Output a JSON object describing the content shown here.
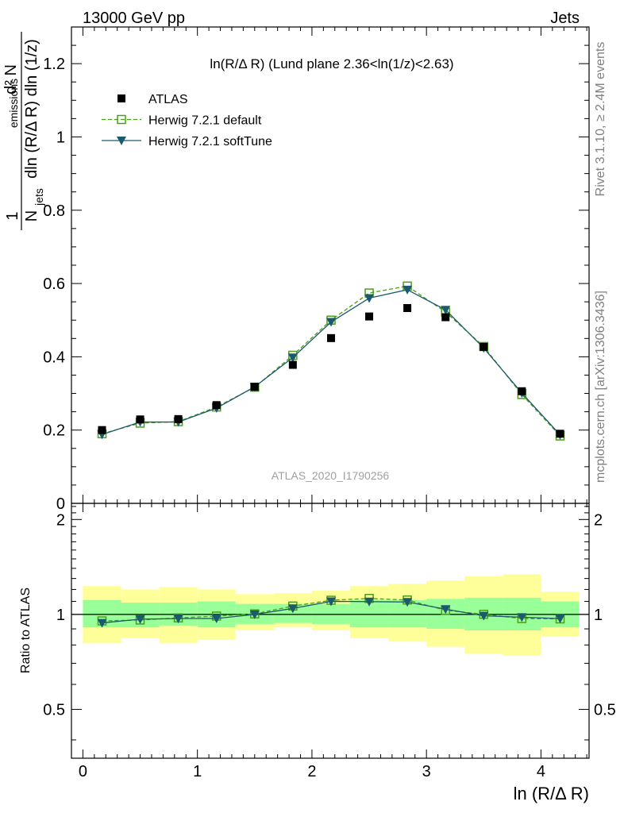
{
  "header": {
    "left": "13000 GeV pp",
    "right": "Jets"
  },
  "side": {
    "top": "Rivet 3.1.10, ≥ 2.4M events",
    "bottom": "mcplots.cern.ch [arXiv:1306.3436]"
  },
  "chart_data": [
    {
      "type": "scatter",
      "title": "ln(R/Δ R) (Lund plane 2.36<ln(1/z)<2.63)",
      "watermark": "ATLAS_2020_I1790256",
      "ylabel": "1/N_jets d²N_emissions / dln(R/Δ R) dln(1/z)",
      "xlim": [
        -0.1,
        4.42
      ],
      "ylim": [
        0,
        1.3
      ],
      "yticks": [
        0,
        0.2,
        0.4,
        0.6,
        0.8,
        1,
        1.2
      ],
      "ytick_labels": [
        "0",
        "0.2",
        "0.4",
        "0.6",
        "0.8",
        "1",
        "1.2"
      ],
      "x": [
        0.167,
        0.5,
        0.833,
        1.167,
        1.5,
        1.833,
        2.167,
        2.5,
        2.833,
        3.167,
        3.5,
        3.833,
        4.167
      ],
      "series": [
        {
          "name": "ATLAS",
          "color": "#000000",
          "marker": "square-filled",
          "values": [
            0.2,
            0.229,
            0.23,
            0.268,
            0.318,
            0.378,
            0.451,
            0.51,
            0.533,
            0.508,
            0.427,
            0.306,
            0.19
          ]
        },
        {
          "name": "Herwig 7.2.1 default",
          "color": "#4b9e19",
          "marker": "square-open",
          "line": "dashed",
          "values": [
            0.19,
            0.219,
            0.223,
            0.263,
            0.317,
            0.404,
            0.5,
            0.574,
            0.593,
            0.522,
            0.428,
            0.297,
            0.184
          ]
        },
        {
          "name": "Herwig 7.2.1 softTune",
          "color": "#1a5a6e",
          "marker": "triangle-down",
          "line": "solid",
          "values": [
            0.188,
            0.222,
            0.222,
            0.26,
            0.318,
            0.398,
            0.495,
            0.56,
            0.583,
            0.528,
            0.424,
            0.301,
            0.187
          ]
        }
      ]
    },
    {
      "type": "scatter",
      "ylabel": "Ratio to ATLAS",
      "xlabel": "ln (R/Δ R)",
      "xlim": [
        -0.1,
        4.42
      ],
      "ylim": [
        0.35,
        2.25
      ],
      "xticks": [
        0,
        1,
        2,
        3,
        4
      ],
      "xtick_labels": [
        "0",
        "1",
        "2",
        "3",
        "4"
      ],
      "yticks": [
        0.5,
        1,
        2
      ],
      "ytick_labels": [
        "0.5",
        "1",
        "2"
      ],
      "bins": [
        0,
        0.333,
        0.667,
        1.0,
        1.333,
        1.667,
        2.0,
        2.333,
        2.667,
        3.0,
        3.333,
        3.667,
        4.0,
        4.333
      ],
      "band_inner": {
        "color": "#99ff99",
        "low": [
          0.91,
          0.91,
          0.92,
          0.91,
          0.93,
          0.94,
          0.93,
          0.91,
          0.91,
          0.9,
          0.89,
          0.89,
          0.91
        ],
        "high": [
          1.11,
          1.09,
          1.09,
          1.1,
          1.08,
          1.08,
          1.08,
          1.11,
          1.11,
          1.12,
          1.13,
          1.13,
          1.1
        ]
      },
      "band_outer": {
        "color": "#ffff99",
        "low": [
          0.81,
          0.84,
          0.81,
          0.83,
          0.89,
          0.91,
          0.89,
          0.84,
          0.82,
          0.79,
          0.75,
          0.74,
          0.85
        ],
        "high": [
          1.23,
          1.2,
          1.22,
          1.2,
          1.16,
          1.17,
          1.19,
          1.23,
          1.25,
          1.28,
          1.32,
          1.34,
          1.18
        ]
      },
      "x": [
        0.167,
        0.5,
        0.833,
        1.167,
        1.5,
        1.833,
        2.167,
        2.5,
        2.833,
        3.167,
        3.5,
        3.833,
        4.167
      ],
      "series": [
        {
          "name": "Herwig 7.2.1 default",
          "color": "#4b9e19",
          "marker": "square-open",
          "line": "dashed",
          "values": [
            0.954,
            0.96,
            0.975,
            0.988,
            1.004,
            1.063,
            1.109,
            1.124,
            1.111,
            1.031,
            1.001,
            0.97,
            0.968
          ]
        },
        {
          "name": "Herwig 7.2.1 softTune",
          "color": "#1a5a6e",
          "marker": "triangle-down",
          "line": "solid",
          "values": [
            0.94,
            0.966,
            0.97,
            0.971,
            1.0,
            1.045,
            1.1,
            1.098,
            1.095,
            1.039,
            0.99,
            0.98,
            0.97
          ]
        }
      ]
    }
  ]
}
